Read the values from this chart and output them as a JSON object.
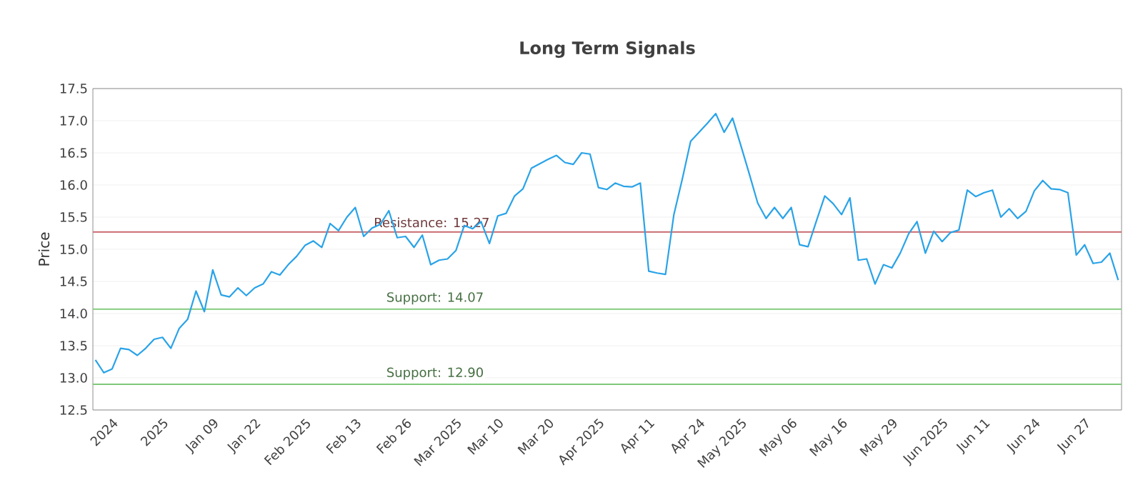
{
  "chart_data": {
    "type": "line",
    "title": "Long Term Signals",
    "ylabel": "Price",
    "categories": [
      null,
      null,
      "2024",
      null,
      null,
      null,
      null,
      null,
      "2025",
      null,
      null,
      null,
      null,
      null,
      "Jan 09",
      null,
      null,
      null,
      null,
      "Jan 22",
      null,
      null,
      null,
      null,
      null,
      "Feb 2025",
      null,
      null,
      null,
      null,
      null,
      "Feb 13",
      null,
      null,
      null,
      null,
      null,
      "Feb 26",
      null,
      null,
      null,
      null,
      null,
      "Mar 2025",
      null,
      null,
      null,
      null,
      "Mar 10",
      null,
      null,
      null,
      null,
      null,
      "Mar 20",
      null,
      null,
      null,
      null,
      null,
      "Apr 2025",
      null,
      null,
      null,
      null,
      null,
      "Apr 11",
      null,
      null,
      null,
      null,
      null,
      "Apr 24",
      null,
      null,
      null,
      null,
      "May 2025",
      null,
      null,
      null,
      null,
      null,
      "May 06",
      null,
      null,
      null,
      null,
      null,
      "May 16",
      null,
      null,
      null,
      null,
      null,
      "May 29",
      null,
      null,
      null,
      null,
      null,
      "Jun 2025",
      null,
      null,
      null,
      null,
      "Jun 11",
      null,
      null,
      null,
      null,
      null,
      "Jun 24",
      null,
      null,
      null,
      null,
      null,
      "Jun 27",
      null,
      null,
      null,
      null
    ],
    "series": [
      {
        "color": "#29a3e8",
        "values": [
          13.28,
          13.08,
          13.14,
          13.46,
          13.44,
          13.35,
          13.46,
          13.6,
          13.63,
          13.46,
          13.77,
          13.91,
          14.35,
          14.03,
          14.68,
          14.29,
          14.26,
          14.4,
          14.28,
          14.4,
          14.46,
          14.65,
          14.6,
          14.76,
          14.89,
          15.06,
          15.13,
          15.03,
          15.4,
          15.29,
          15.5,
          15.65,
          15.2,
          15.33,
          15.39,
          15.6,
          15.18,
          15.2,
          15.03,
          15.22,
          14.76,
          14.83,
          14.85,
          14.98,
          15.37,
          15.32,
          15.43,
          15.09,
          15.52,
          15.56,
          15.83,
          15.94,
          16.26,
          16.33,
          16.4,
          16.46,
          16.35,
          16.32,
          16.5,
          16.48,
          15.96,
          15.93,
          16.03,
          15.98,
          15.97,
          16.03,
          14.66,
          14.63,
          14.61,
          15.54,
          16.09,
          16.68,
          16.82,
          16.96,
          17.11,
          16.82,
          17.04,
          16.61,
          16.17,
          15.72,
          15.48,
          15.65,
          15.48,
          15.65,
          15.07,
          15.04,
          15.44,
          15.83,
          15.71,
          15.54,
          15.8,
          14.83,
          14.85,
          14.46,
          14.76,
          14.71,
          14.94,
          15.24,
          15.43,
          14.94,
          15.28,
          15.12,
          15.26,
          15.3,
          15.92,
          15.82,
          15.88,
          15.92,
          15.5,
          15.63,
          15.48,
          15.59,
          15.91,
          16.07,
          15.94,
          15.93,
          15.88,
          14.91,
          15.07,
          14.78,
          14.8,
          14.94,
          14.52
        ]
      }
    ],
    "ylim": [
      12.5,
      17.5
    ],
    "yticks": [
      12.5,
      {
        "value": 13,
        "label": "13.0"
      },
      13.5,
      {
        "value": 14,
        "label": "14.0"
      },
      14.5,
      {
        "value": 15,
        "label": "15.0"
      },
      15.5,
      {
        "value": 16,
        "label": "16.0"
      },
      16.5,
      {
        "value": 17,
        "label": "17.0"
      },
      17.5
    ],
    "grid": "y",
    "marker": "none",
    "line_style": "solid",
    "ref_lines": [
      {
        "axis": "y",
        "value": 15.27,
        "label": "Resistance: 15.27",
        "color": "#c9676b"
      },
      {
        "axis": "y",
        "value": 14.07,
        "label": "Support: 14.07",
        "color": "#7fc97a"
      },
      {
        "axis": "y",
        "value": 12.9,
        "label": "Support: 12.90",
        "color": "#7fc97a"
      }
    ]
  }
}
